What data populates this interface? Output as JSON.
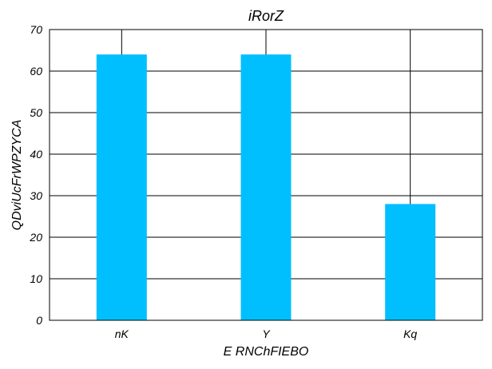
{
  "chart_data": {
    "type": "bar",
    "title": "iRorZ",
    "xlabel": "E RNChFIEBO",
    "ylabel": "QDviUcFrWPZYCA",
    "categories": [
      "nK",
      "Y",
      "Kq"
    ],
    "values": [
      64,
      64,
      28
    ],
    "ylim": [
      0,
      70
    ],
    "yticks": [
      0,
      10,
      20,
      30,
      40,
      50,
      60,
      70
    ],
    "grid": true,
    "bar_color": "#00bfff",
    "grid_color": "#000000"
  }
}
